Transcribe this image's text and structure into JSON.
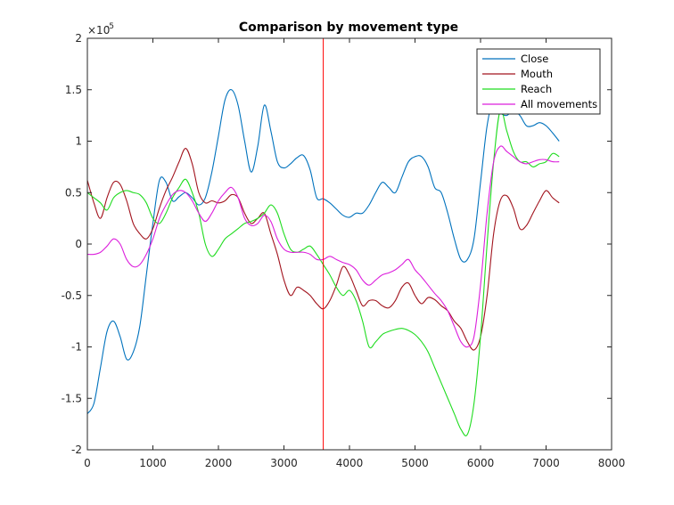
{
  "chart_data": {
    "type": "line",
    "title": "Comparison by movement type",
    "xlabel": "",
    "ylabel": "",
    "xlim": [
      0,
      8000
    ],
    "ylim": [
      -2e-05,
      2e-05
    ],
    "xticks": [
      "0",
      "1000",
      "2000",
      "3000",
      "4000",
      "5000",
      "6000",
      "7000",
      "8000"
    ],
    "yticks": [
      "-2",
      "-1.5",
      "-1",
      "-0.5",
      "0",
      "0.5",
      "1",
      "1.5",
      "2"
    ],
    "y_exponent": "×10",
    "y_exponent_power": "-5",
    "grid": false,
    "legend_position": "top-right",
    "vline": {
      "x": 3600,
      "color": "#ff0000"
    },
    "series": [
      {
        "name": "Close",
        "color": "#0072bd",
        "x": [
          0,
          100,
          200,
          300,
          400,
          500,
          600,
          700,
          800,
          900,
          1000,
          1100,
          1200,
          1300,
          1400,
          1500,
          1600,
          1700,
          1800,
          1900,
          2000,
          2100,
          2200,
          2300,
          2400,
          2500,
          2600,
          2700,
          2800,
          2900,
          3000,
          3100,
          3200,
          3300,
          3400,
          3500,
          3600,
          3700,
          3800,
          3900,
          4000,
          4100,
          4200,
          4300,
          4400,
          4500,
          4600,
          4700,
          4800,
          4900,
          5000,
          5100,
          5200,
          5300,
          5400,
          5500,
          5600,
          5700,
          5800,
          5900,
          6000,
          6100,
          6200,
          6300,
          6400,
          6500,
          6600,
          6700,
          6800,
          6900,
          7000,
          7100,
          7200
        ],
        "y": [
          -1.65e-05,
          -1.55e-05,
          -1.2e-05,
          -8.5e-06,
          -7.5e-06,
          -9e-06,
          -1.12e-05,
          -1.05e-05,
          -8e-06,
          -3e-06,
          2e-06,
          6.2e-06,
          6e-06,
          4.2e-06,
          4.6e-06,
          5e-06,
          4.5e-06,
          3.8e-06,
          4.5e-06,
          7e-06,
          1.05e-05,
          1.4e-05,
          1.5e-05,
          1.35e-05,
          1e-05,
          7e-06,
          9.5e-06,
          1.35e-05,
          1.1e-05,
          8e-06,
          7.4e-06,
          7.8e-06,
          8.4e-06,
          8.6e-06,
          7.2e-06,
          4.5e-06,
          4.4e-06,
          4e-06,
          3.4e-06,
          2.8e-06,
          2.6e-06,
          3e-06,
          3e-06,
          3.8e-06,
          5e-06,
          6e-06,
          5.5e-06,
          5e-06,
          6.5e-06,
          8e-06,
          8.5e-06,
          8.5e-06,
          7.5e-06,
          5.5e-06,
          5e-06,
          3e-06,
          5e-07,
          -1.5e-06,
          -1.5e-06,
          5e-07,
          6e-06,
          1.15e-05,
          1.4e-05,
          1.28e-05,
          1.25e-05,
          1.3e-05,
          1.25e-05,
          1.15e-05,
          1.15e-05,
          1.18e-05,
          1.15e-05,
          1.08e-05,
          1e-05
        ]
      },
      {
        "name": "Mouth",
        "color": "#a2141e",
        "x": [
          0,
          100,
          200,
          300,
          400,
          500,
          600,
          700,
          800,
          900,
          1000,
          1100,
          1200,
          1300,
          1400,
          1500,
          1600,
          1700,
          1800,
          1900,
          2000,
          2100,
          2200,
          2300,
          2400,
          2500,
          2600,
          2700,
          2800,
          2900,
          3000,
          3100,
          3200,
          3300,
          3400,
          3500,
          3600,
          3700,
          3800,
          3900,
          4000,
          4100,
          4200,
          4300,
          4400,
          4500,
          4600,
          4700,
          4800,
          4900,
          5000,
          5100,
          5200,
          5300,
          5400,
          5500,
          5600,
          5700,
          5800,
          5900,
          6000,
          6100,
          6200,
          6300,
          6400,
          6500,
          6600,
          6700,
          6800,
          6900,
          7000,
          7100,
          7200
        ],
        "y": [
          6.2e-06,
          4e-06,
          2.5e-06,
          4.5e-06,
          6e-06,
          5.8e-06,
          4.2e-06,
          2e-06,
          1e-06,
          5e-07,
          1.5e-06,
          3.5e-06,
          5.2e-06,
          6.5e-06,
          8e-06,
          9.3e-06,
          7.8e-06,
          5e-06,
          4e-06,
          4.2e-06,
          4e-06,
          4.2e-06,
          4.8e-06,
          4.5e-06,
          3e-06,
          2e-06,
          2.5e-06,
          3e-06,
          1e-06,
          -1e-06,
          -3.5e-06,
          -5e-06,
          -4.2e-06,
          -4.5e-06,
          -5e-06,
          -5.8e-06,
          -6.3e-06,
          -5.5e-06,
          -4e-06,
          -2.2e-06,
          -3e-06,
          -4.5e-06,
          -6e-06,
          -5.5e-06,
          -5.5e-06,
          -6e-06,
          -6.2e-06,
          -5.5e-06,
          -4.2e-06,
          -3.8e-06,
          -5e-06,
          -5.8e-06,
          -5.2e-06,
          -5.4e-06,
          -6e-06,
          -6.5e-06,
          -7.5e-06,
          -8.2e-06,
          -9.5e-06,
          -1.03e-05,
          -9e-06,
          -5e-06,
          1e-06,
          4.2e-06,
          4.7e-06,
          3.5e-06,
          1.5e-06,
          1.8e-06,
          3e-06,
          4.2e-06,
          5.2e-06,
          4.5e-06,
          4e-06
        ]
      },
      {
        "name": "Reach",
        "color": "#1fdc1f",
        "x": [
          0,
          100,
          200,
          300,
          400,
          500,
          600,
          700,
          800,
          900,
          1000,
          1100,
          1200,
          1300,
          1400,
          1500,
          1600,
          1700,
          1800,
          1900,
          2000,
          2100,
          2200,
          2300,
          2400,
          2500,
          2600,
          2700,
          2800,
          2900,
          3000,
          3100,
          3200,
          3300,
          3400,
          3500,
          3600,
          3700,
          3800,
          3900,
          4000,
          4100,
          4200,
          4300,
          4400,
          4500,
          4600,
          4700,
          4800,
          4900,
          5000,
          5100,
          5200,
          5300,
          5400,
          5500,
          5600,
          5700,
          5800,
          5900,
          6000,
          6100,
          6200,
          6300,
          6400,
          6500,
          6600,
          6700,
          6800,
          6900,
          7000,
          7100,
          7200
        ],
        "y": [
          5e-06,
          4.5e-06,
          4e-06,
          3.3e-06,
          4.5e-06,
          5e-06,
          5.2e-06,
          5e-06,
          4.8e-06,
          4e-06,
          2.5e-06,
          2e-06,
          3e-06,
          4.5e-06,
          5.5e-06,
          6.3e-06,
          5e-06,
          3e-06,
          0.0,
          -1.2e-06,
          -5e-07,
          5e-07,
          1e-06,
          1.5e-06,
          2e-06,
          2.2e-06,
          2.5e-06,
          3e-06,
          3.8e-06,
          3e-06,
          1e-06,
          -5e-07,
          -8e-07,
          -5e-07,
          -2e-07,
          -1e-06,
          -2e-06,
          -3e-06,
          -4.2e-06,
          -5e-06,
          -4.5e-06,
          -5.5e-06,
          -7.5e-06,
          -1e-05,
          -9.5e-06,
          -8.8e-06,
          -8.5e-06,
          -8.3e-06,
          -8.2e-06,
          -8.4e-06,
          -8.8e-06,
          -9.5e-06,
          -1.05e-05,
          -1.2e-05,
          -1.35e-05,
          -1.5e-05,
          -1.65e-05,
          -1.8e-05,
          -1.85e-05,
          -1.55e-05,
          -9e-06,
          0.0,
          8e-06,
          1.3e-05,
          1.1e-05,
          9e-06,
          8e-06,
          8e-06,
          7.5e-06,
          7.8e-06,
          8e-06,
          8.8e-06,
          8.5e-06
        ]
      },
      {
        "name": "All movements",
        "color": "#dc1fdc",
        "x": [
          0,
          100,
          200,
          300,
          400,
          500,
          600,
          700,
          800,
          900,
          1000,
          1100,
          1200,
          1300,
          1400,
          1500,
          1600,
          1700,
          1800,
          1900,
          2000,
          2100,
          2200,
          2300,
          2400,
          2500,
          2600,
          2700,
          2800,
          2900,
          3000,
          3100,
          3200,
          3300,
          3400,
          3500,
          3600,
          3700,
          3800,
          3900,
          4000,
          4100,
          4200,
          4300,
          4400,
          4500,
          4600,
          4700,
          4800,
          4900,
          5000,
          5100,
          5200,
          5300,
          5400,
          5500,
          5600,
          5700,
          5800,
          5900,
          6000,
          6100,
          6200,
          6300,
          6400,
          6500,
          6600,
          6700,
          6800,
          6900,
          7000,
          7100,
          7200
        ],
        "y": [
          -1e-06,
          -1e-06,
          -8e-07,
          -2e-07,
          5e-07,
          0.0,
          -1.5e-06,
          -2.2e-06,
          -2e-06,
          -1e-06,
          5e-07,
          2.5e-06,
          3.8e-06,
          4.8e-06,
          5.2e-06,
          5e-06,
          4.2e-06,
          3e-06,
          2.2e-06,
          3e-06,
          4.2e-06,
          5e-06,
          5.5e-06,
          4.5e-06,
          2.5e-06,
          1.8e-06,
          2e-06,
          2.8e-06,
          2.2e-06,
          5e-07,
          -5e-07,
          -8e-07,
          -8e-07,
          -8e-07,
          -1e-06,
          -1.5e-06,
          -1.5e-06,
          -1.2e-06,
          -1.5e-06,
          -1.8e-06,
          -2e-06,
          -2.5e-06,
          -3.5e-06,
          -4e-06,
          -3.5e-06,
          -3e-06,
          -2.8e-06,
          -2.5e-06,
          -2e-06,
          -1.5e-06,
          -2.5e-06,
          -3.2e-06,
          -4e-06,
          -4.8e-06,
          -5.5e-06,
          -6.5e-06,
          -8e-06,
          -9.5e-06,
          -1e-05,
          -9e-06,
          -4e-06,
          3e-06,
          8e-06,
          9.5e-06,
          9e-06,
          8.5e-06,
          8e-06,
          7.8e-06,
          8e-06,
          8.2e-06,
          8.2e-06,
          8e-06,
          8e-06
        ]
      }
    ]
  }
}
